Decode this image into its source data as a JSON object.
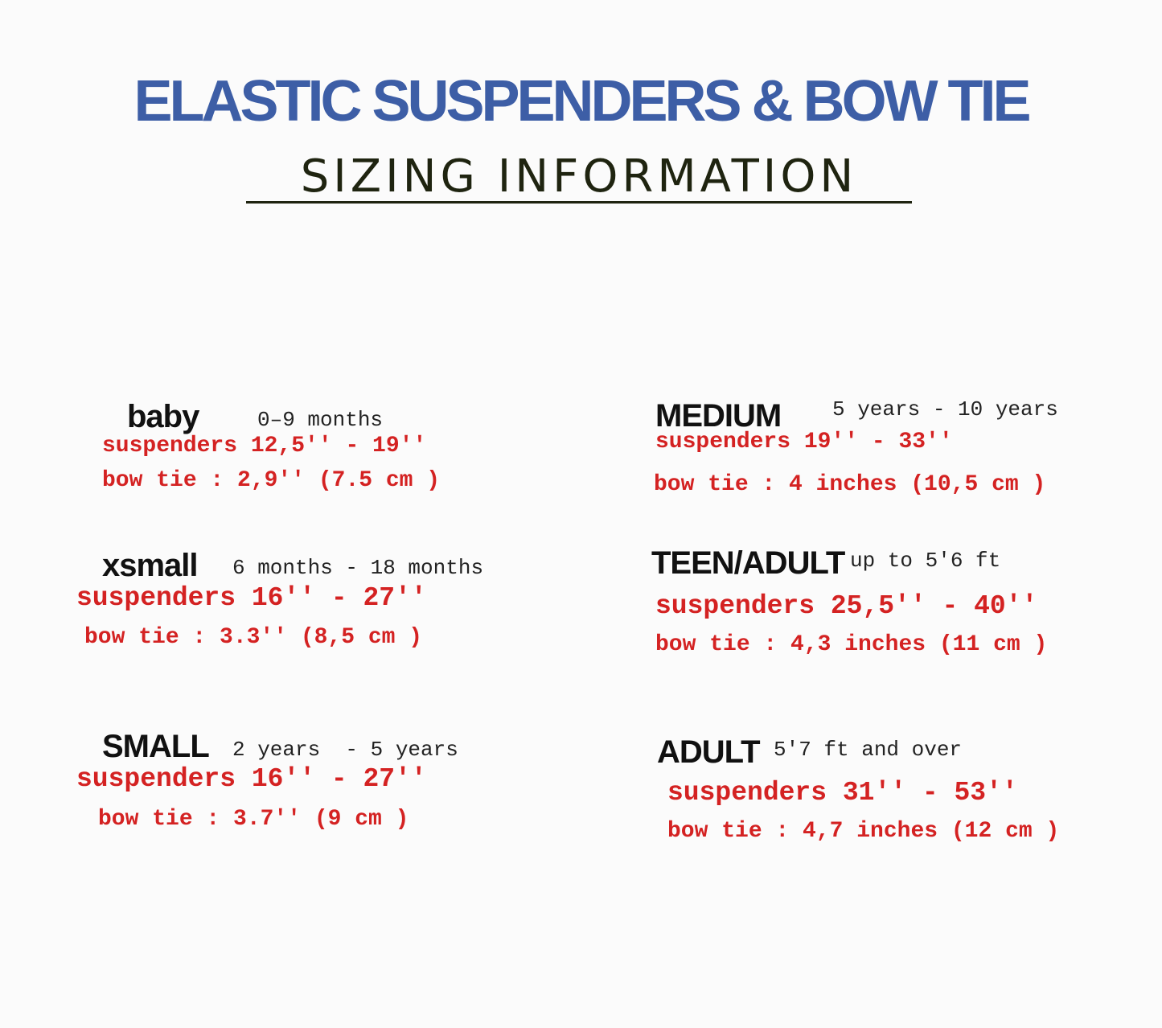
{
  "title": "ELASTIC SUSPENDERS & BOW TIE",
  "subtitle": "SIZING INFORMATION",
  "colors": {
    "title": "#3d5ea6",
    "subtitle": "#1f2410",
    "measurements": "#d42222"
  },
  "sizes": [
    {
      "name": "baby",
      "range": "0–9 months",
      "suspenders": "suspenders 12,5'' - 19''",
      "bow_tie": "bow tie : 2,9'' (7.5 cm )"
    },
    {
      "name": "xsmall",
      "range": "6 months - 18 months",
      "suspenders": "suspenders 16'' - 27''",
      "bow_tie": "bow tie : 3.3'' (8,5 cm )"
    },
    {
      "name": "SMALL",
      "range": "2 years  - 5 years",
      "suspenders": "suspenders 16'' - 27''",
      "bow_tie": "bow tie : 3.7'' (9 cm )"
    },
    {
      "name": "MEDIUM",
      "range": "5 years - 10 years",
      "suspenders": "suspenders 19'' - 33''",
      "bow_tie": "bow tie : 4 inches (10,5 cm )"
    },
    {
      "name": "TEEN/ADULT",
      "range": "up to 5'6 ft",
      "suspenders": "suspenders 25,5'' - 40''",
      "bow_tie": "bow tie : 4,3 inches (11 cm )"
    },
    {
      "name": "ADULT",
      "range": "5'7 ft and over",
      "suspenders": "suspenders 31'' - 53''",
      "bow_tie": "bow tie : 4,7 inches (12 cm )"
    }
  ]
}
